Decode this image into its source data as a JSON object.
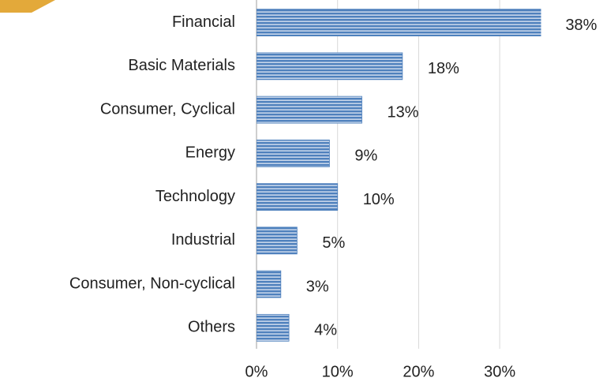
{
  "chart_data": {
    "type": "bar",
    "orientation": "horizontal",
    "categories": [
      "Financial",
      "Basic Materials",
      "Consumer, Cyclical",
      "Energy",
      "Technology",
      "Industrial",
      "Consumer, Non-cyclical",
      "Others"
    ],
    "values": [
      38,
      18,
      13,
      9,
      10,
      5,
      3,
      4
    ],
    "value_labels": [
      "38%",
      "18%",
      "13%",
      "9%",
      "10%",
      "5%",
      "3%",
      "4%"
    ],
    "color": "#4f81bd",
    "xlim": [
      0,
      35
    ],
    "xticks": [
      {
        "value": 0,
        "label": "0%"
      },
      {
        "value": 10,
        "label": "10%"
      },
      {
        "value": 20,
        "label": "20%"
      },
      {
        "value": 30,
        "label": "30%"
      }
    ],
    "grid": true
  }
}
